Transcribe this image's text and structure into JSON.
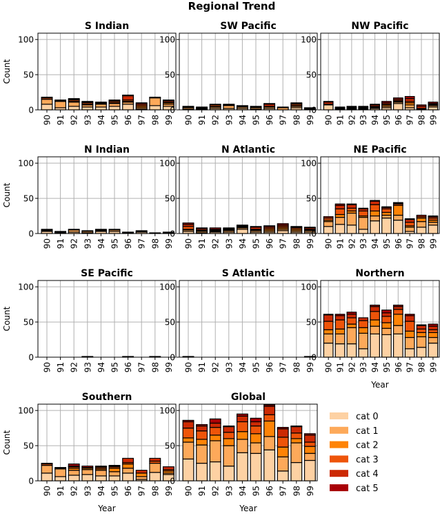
{
  "chart_data": {
    "type": "bar",
    "stacked": true,
    "title": "Regional Trend",
    "categories": [
      "90",
      "91",
      "92",
      "93",
      "94",
      "95",
      "96",
      "97",
      "98",
      "99"
    ],
    "series_names": [
      "cat 0",
      "cat 1",
      "cat 2",
      "cat 3",
      "cat 4",
      "cat 5"
    ],
    "colors": [
      "#fdd1a3",
      "#fda95a",
      "#fe8306",
      "#ee5409",
      "#cc2a04",
      "#a90005"
    ],
    "ylim": [
      0,
      109
    ],
    "yticks": [
      0,
      50,
      100
    ],
    "grid": true,
    "legend_placement": "bottom-right",
    "ylabel": "Count",
    "xlabel": "Year",
    "panels": [
      {
        "title": "S Indian",
        "show_ylabel": true,
        "show_xlabel": false,
        "values": [
          [
            8,
            7,
            0,
            2,
            0,
            1
          ],
          [
            3,
            9,
            0,
            0,
            1,
            1
          ],
          [
            5,
            6,
            1,
            2,
            1,
            1
          ],
          [
            4,
            3,
            1,
            2,
            1,
            1
          ],
          [
            4,
            4,
            1,
            1,
            0,
            1
          ],
          [
            5,
            4,
            1,
            2,
            1,
            1
          ],
          [
            8,
            3,
            1,
            2,
            6,
            1
          ],
          [
            1,
            2,
            2,
            2,
            2,
            1
          ],
          [
            6,
            11,
            0,
            0,
            0,
            1
          ],
          [
            5,
            3,
            2,
            1,
            2,
            1
          ]
        ]
      },
      {
        "title": "SW Pacific",
        "show_ylabel": false,
        "show_xlabel": false,
        "values": [
          [
            1,
            2,
            0,
            1,
            0,
            1
          ],
          [
            1,
            1,
            0,
            1,
            0,
            1
          ],
          [
            2,
            2,
            1,
            2,
            0,
            1
          ],
          [
            2,
            4,
            0,
            1,
            0,
            1
          ],
          [
            2,
            2,
            0,
            1,
            0,
            1
          ],
          [
            1,
            2,
            0,
            1,
            0,
            1
          ],
          [
            2,
            2,
            0,
            1,
            3,
            1
          ],
          [
            0,
            3,
            0,
            0,
            0,
            1
          ],
          [
            3,
            2,
            1,
            2,
            1,
            1
          ],
          [
            1,
            1,
            0,
            0,
            0,
            1
          ]
        ]
      },
      {
        "title": "NW Pacific",
        "show_ylabel": false,
        "show_xlabel": false,
        "values": [
          [
            7,
            0,
            0,
            1,
            3,
            1
          ],
          [
            1,
            1,
            0,
            0,
            1,
            1
          ],
          [
            1,
            1,
            0,
            1,
            1,
            1
          ],
          [
            1,
            1,
            1,
            0,
            1,
            1
          ],
          [
            2,
            1,
            1,
            1,
            2,
            1
          ],
          [
            3,
            2,
            2,
            1,
            2,
            2
          ],
          [
            9,
            2,
            1,
            1,
            2,
            2
          ],
          [
            3,
            4,
            3,
            2,
            4,
            3
          ],
          [
            1,
            1,
            0,
            0,
            3,
            2
          ],
          [
            4,
            2,
            1,
            1,
            1,
            2
          ]
        ]
      },
      {
        "title": "N Indian",
        "show_ylabel": true,
        "show_xlabel": false,
        "values": [
          [
            3,
            1,
            0,
            1,
            0,
            1
          ],
          [
            1,
            1,
            0,
            0,
            0,
            1
          ],
          [
            2,
            3,
            0,
            0,
            0,
            1
          ],
          [
            1,
            2,
            0,
            0,
            0,
            1
          ],
          [
            3,
            1,
            0,
            1,
            0,
            1
          ],
          [
            3,
            2,
            0,
            0,
            0,
            1
          ],
          [
            1,
            0,
            0,
            0,
            0,
            1
          ],
          [
            2,
            1,
            0,
            0,
            0,
            1
          ],
          [
            0,
            0,
            0,
            0,
            0,
            1
          ],
          [
            1,
            0,
            0,
            0,
            0,
            1
          ]
        ]
      },
      {
        "title": "N Atlantic",
        "show_ylabel": false,
        "show_xlabel": false,
        "values": [
          [
            3,
            2,
            1,
            4,
            3,
            2
          ],
          [
            1,
            2,
            1,
            1,
            2,
            1
          ],
          [
            2,
            1,
            1,
            1,
            1,
            2
          ],
          [
            2,
            2,
            1,
            1,
            1,
            1
          ],
          [
            6,
            2,
            1,
            1,
            1,
            1
          ],
          [
            2,
            2,
            1,
            1,
            3,
            1
          ],
          [
            2,
            2,
            2,
            2,
            2,
            1
          ],
          [
            4,
            2,
            2,
            2,
            2,
            2
          ],
          [
            2,
            2,
            2,
            2,
            1,
            1
          ],
          [
            2,
            2,
            1,
            1,
            2,
            1
          ]
        ]
      },
      {
        "title": "NE Pacific",
        "show_ylabel": false,
        "show_xlabel": false,
        "values": [
          [
            10,
            7,
            2,
            3,
            2,
            0
          ],
          [
            13,
            10,
            4,
            8,
            5,
            2
          ],
          [
            12,
            17,
            3,
            4,
            5,
            1
          ],
          [
            6,
            17,
            2,
            7,
            3,
            1
          ],
          [
            18,
            7,
            7,
            9,
            5,
            1
          ],
          [
            22,
            4,
            4,
            5,
            2,
            1
          ],
          [
            19,
            7,
            14,
            2,
            1,
            1
          ],
          [
            3,
            6,
            2,
            5,
            4,
            1
          ],
          [
            9,
            8,
            5,
            2,
            2,
            0
          ],
          [
            12,
            4,
            3,
            3,
            2,
            1
          ]
        ]
      },
      {
        "title": "SE Pacific",
        "show_ylabel": true,
        "show_xlabel": false,
        "values": [
          [
            0,
            0,
            0,
            0,
            0,
            0
          ],
          [
            0,
            0,
            0,
            0,
            0,
            0
          ],
          [
            0,
            0,
            0,
            0,
            0,
            0
          ],
          [
            0,
            0,
            0,
            0,
            0,
            1
          ],
          [
            0,
            0,
            0,
            0,
            0,
            0
          ],
          [
            0,
            0,
            0,
            0,
            0,
            0
          ],
          [
            0,
            0,
            0,
            0,
            0,
            1
          ],
          [
            0,
            0,
            0,
            0,
            0,
            0
          ],
          [
            0,
            0,
            0,
            0,
            0,
            1
          ],
          [
            0,
            0,
            0,
            0,
            0,
            0
          ]
        ]
      },
      {
        "title": "S Atlantic",
        "show_ylabel": false,
        "show_xlabel": false,
        "values": [
          [
            0,
            0,
            0,
            0,
            0,
            1
          ],
          [
            0,
            0,
            0,
            0,
            0,
            0
          ],
          [
            0,
            0,
            0,
            0,
            0,
            0
          ],
          [
            0,
            0,
            0,
            0,
            0,
            0
          ],
          [
            0,
            0,
            0,
            0,
            0,
            0
          ],
          [
            0,
            0,
            0,
            0,
            0,
            0
          ],
          [
            0,
            0,
            0,
            0,
            0,
            0
          ],
          [
            0,
            0,
            0,
            0,
            0,
            0
          ],
          [
            0,
            0,
            0,
            0,
            0,
            0
          ],
          [
            0,
            0,
            0,
            0,
            0,
            1
          ]
        ]
      },
      {
        "title": "Northern",
        "show_ylabel": false,
        "show_xlabel": true,
        "values": [
          [
            20,
            13,
            6,
            12,
            9,
            1
          ],
          [
            19,
            14,
            7,
            13,
            6,
            2
          ],
          [
            19,
            23,
            5,
            9,
            5,
            3
          ],
          [
            12,
            22,
            8,
            10,
            4,
            0
          ],
          [
            33,
            11,
            9,
            12,
            7,
            2
          ],
          [
            32,
            9,
            8,
            9,
            5,
            4
          ],
          [
            33,
            12,
            16,
            7,
            4,
            2
          ],
          [
            12,
            16,
            9,
            14,
            8,
            2
          ],
          [
            14,
            15,
            6,
            5,
            5,
            1
          ],
          [
            20,
            8,
            7,
            4,
            5,
            3
          ]
        ]
      },
      {
        "title": "Southern",
        "show_ylabel": true,
        "show_xlabel": true,
        "values": [
          [
            11,
            11,
            0,
            2,
            0,
            1
          ],
          [
            6,
            11,
            1,
            0,
            1,
            0
          ],
          [
            8,
            7,
            3,
            2,
            1,
            3
          ],
          [
            9,
            7,
            2,
            1,
            2,
            0
          ],
          [
            7,
            8,
            2,
            2,
            1,
            1
          ],
          [
            7,
            6,
            5,
            2,
            1,
            1
          ],
          [
            11,
            7,
            6,
            2,
            6,
            0
          ],
          [
            2,
            4,
            5,
            0,
            4,
            0
          ],
          [
            12,
            13,
            0,
            3,
            4,
            0
          ],
          [
            9,
            2,
            3,
            2,
            4,
            0
          ]
        ]
      },
      {
        "title": "Global",
        "show_ylabel": false,
        "show_xlabel": true,
        "values": [
          [
            31,
            24,
            6,
            14,
            9,
            2
          ],
          [
            25,
            26,
            8,
            12,
            7,
            2
          ],
          [
            27,
            30,
            8,
            11,
            6,
            6
          ],
          [
            21,
            29,
            10,
            9,
            8,
            1
          ],
          [
            40,
            19,
            11,
            14,
            8,
            3
          ],
          [
            39,
            15,
            13,
            11,
            6,
            5
          ],
          [
            44,
            19,
            22,
            9,
            12,
            2
          ],
          [
            14,
            20,
            14,
            14,
            12,
            2
          ],
          [
            26,
            28,
            6,
            8,
            9,
            1
          ],
          [
            29,
            10,
            10,
            6,
            10,
            2
          ]
        ]
      }
    ]
  }
}
